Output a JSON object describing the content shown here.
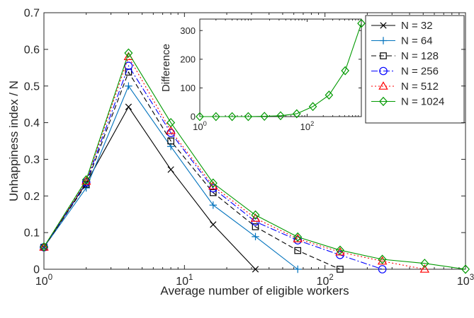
{
  "chart_data": [
    {
      "type": "line",
      "xscale": "log",
      "xlabel": "Average number of eligible workers",
      "ylabel": "Unhappiness index / N",
      "xlim": [
        1,
        1000
      ],
      "ylim": [
        0,
        0.7
      ],
      "yticks": [
        "0",
        "0.1",
        "0.2",
        "0.3",
        "0.4",
        "0.5",
        "0.6",
        "0.7"
      ],
      "xticks": [
        {
          "base": "10",
          "exp": "0",
          "value": 1
        },
        {
          "base": "10",
          "exp": "1",
          "value": 10
        },
        {
          "base": "10",
          "exp": "2",
          "value": 100
        },
        {
          "base": "10",
          "exp": "3",
          "value": 1000
        }
      ],
      "grid": false,
      "legend_position": "top-right",
      "series": [
        {
          "name": "N = 32",
          "color": "#000000",
          "marker": "x",
          "dash": "solid",
          "x": [
            1,
            2,
            4,
            8,
            16,
            32
          ],
          "y": [
            0.06,
            0.235,
            0.443,
            0.272,
            0.122,
            0.0
          ]
        },
        {
          "name": "N = 64",
          "color": "#0072BD",
          "marker": "plus",
          "dash": "solid",
          "x": [
            1,
            2,
            4,
            8,
            16,
            32,
            64
          ],
          "y": [
            0.06,
            0.222,
            0.5,
            0.335,
            0.175,
            0.089,
            0.0
          ]
        },
        {
          "name": "N = 128",
          "color": "#000000",
          "marker": "square",
          "dash": "dashed",
          "x": [
            1,
            2,
            4,
            8,
            16,
            32,
            64,
            128
          ],
          "y": [
            0.06,
            0.232,
            0.538,
            0.35,
            0.209,
            0.116,
            0.051,
            0.0
          ]
        },
        {
          "name": "N = 256",
          "color": "#0000FF",
          "marker": "circle",
          "dash": "dashdot",
          "x": [
            1,
            2,
            4,
            8,
            16,
            32,
            64,
            128,
            256
          ],
          "y": [
            0.06,
            0.237,
            0.555,
            0.372,
            0.221,
            0.13,
            0.079,
            0.039,
            0.0
          ]
        },
        {
          "name": "N = 512",
          "color": "#FF0000",
          "marker": "triangle",
          "dash": "dotted",
          "x": [
            1,
            2,
            4,
            8,
            16,
            32,
            64,
            128,
            256,
            512
          ],
          "y": [
            0.06,
            0.24,
            0.58,
            0.378,
            0.227,
            0.139,
            0.083,
            0.047,
            0.022,
            0.0
          ]
        },
        {
          "name": "N = 1024",
          "color": "#009900",
          "marker": "diamond",
          "dash": "solid",
          "x": [
            1,
            2,
            4,
            8,
            16,
            32,
            64,
            128,
            256,
            512,
            1024
          ],
          "y": [
            0.061,
            0.244,
            0.59,
            0.4,
            0.235,
            0.148,
            0.088,
            0.052,
            0.027,
            0.016,
            0.0
          ]
        }
      ]
    },
    {
      "type": "line",
      "xscale": "log",
      "ylabel": "Difference",
      "xlim": [
        1,
        1024
      ],
      "ylim": [
        0,
        340
      ],
      "yticks": [
        "0",
        "100",
        "200",
        "300"
      ],
      "xticks": [
        {
          "base": "10",
          "exp": "0",
          "value": 1
        },
        {
          "base": "10",
          "exp": "2",
          "value": 100
        }
      ],
      "series": [
        {
          "name": "Difference",
          "color": "#009900",
          "marker": "diamond",
          "x": [
            1,
            2,
            4,
            8,
            16,
            32,
            64,
            128,
            256,
            512,
            1024
          ],
          "y": [
            0,
            0,
            0,
            0,
            1,
            3,
            10,
            35,
            75,
            160,
            325
          ]
        }
      ]
    }
  ]
}
